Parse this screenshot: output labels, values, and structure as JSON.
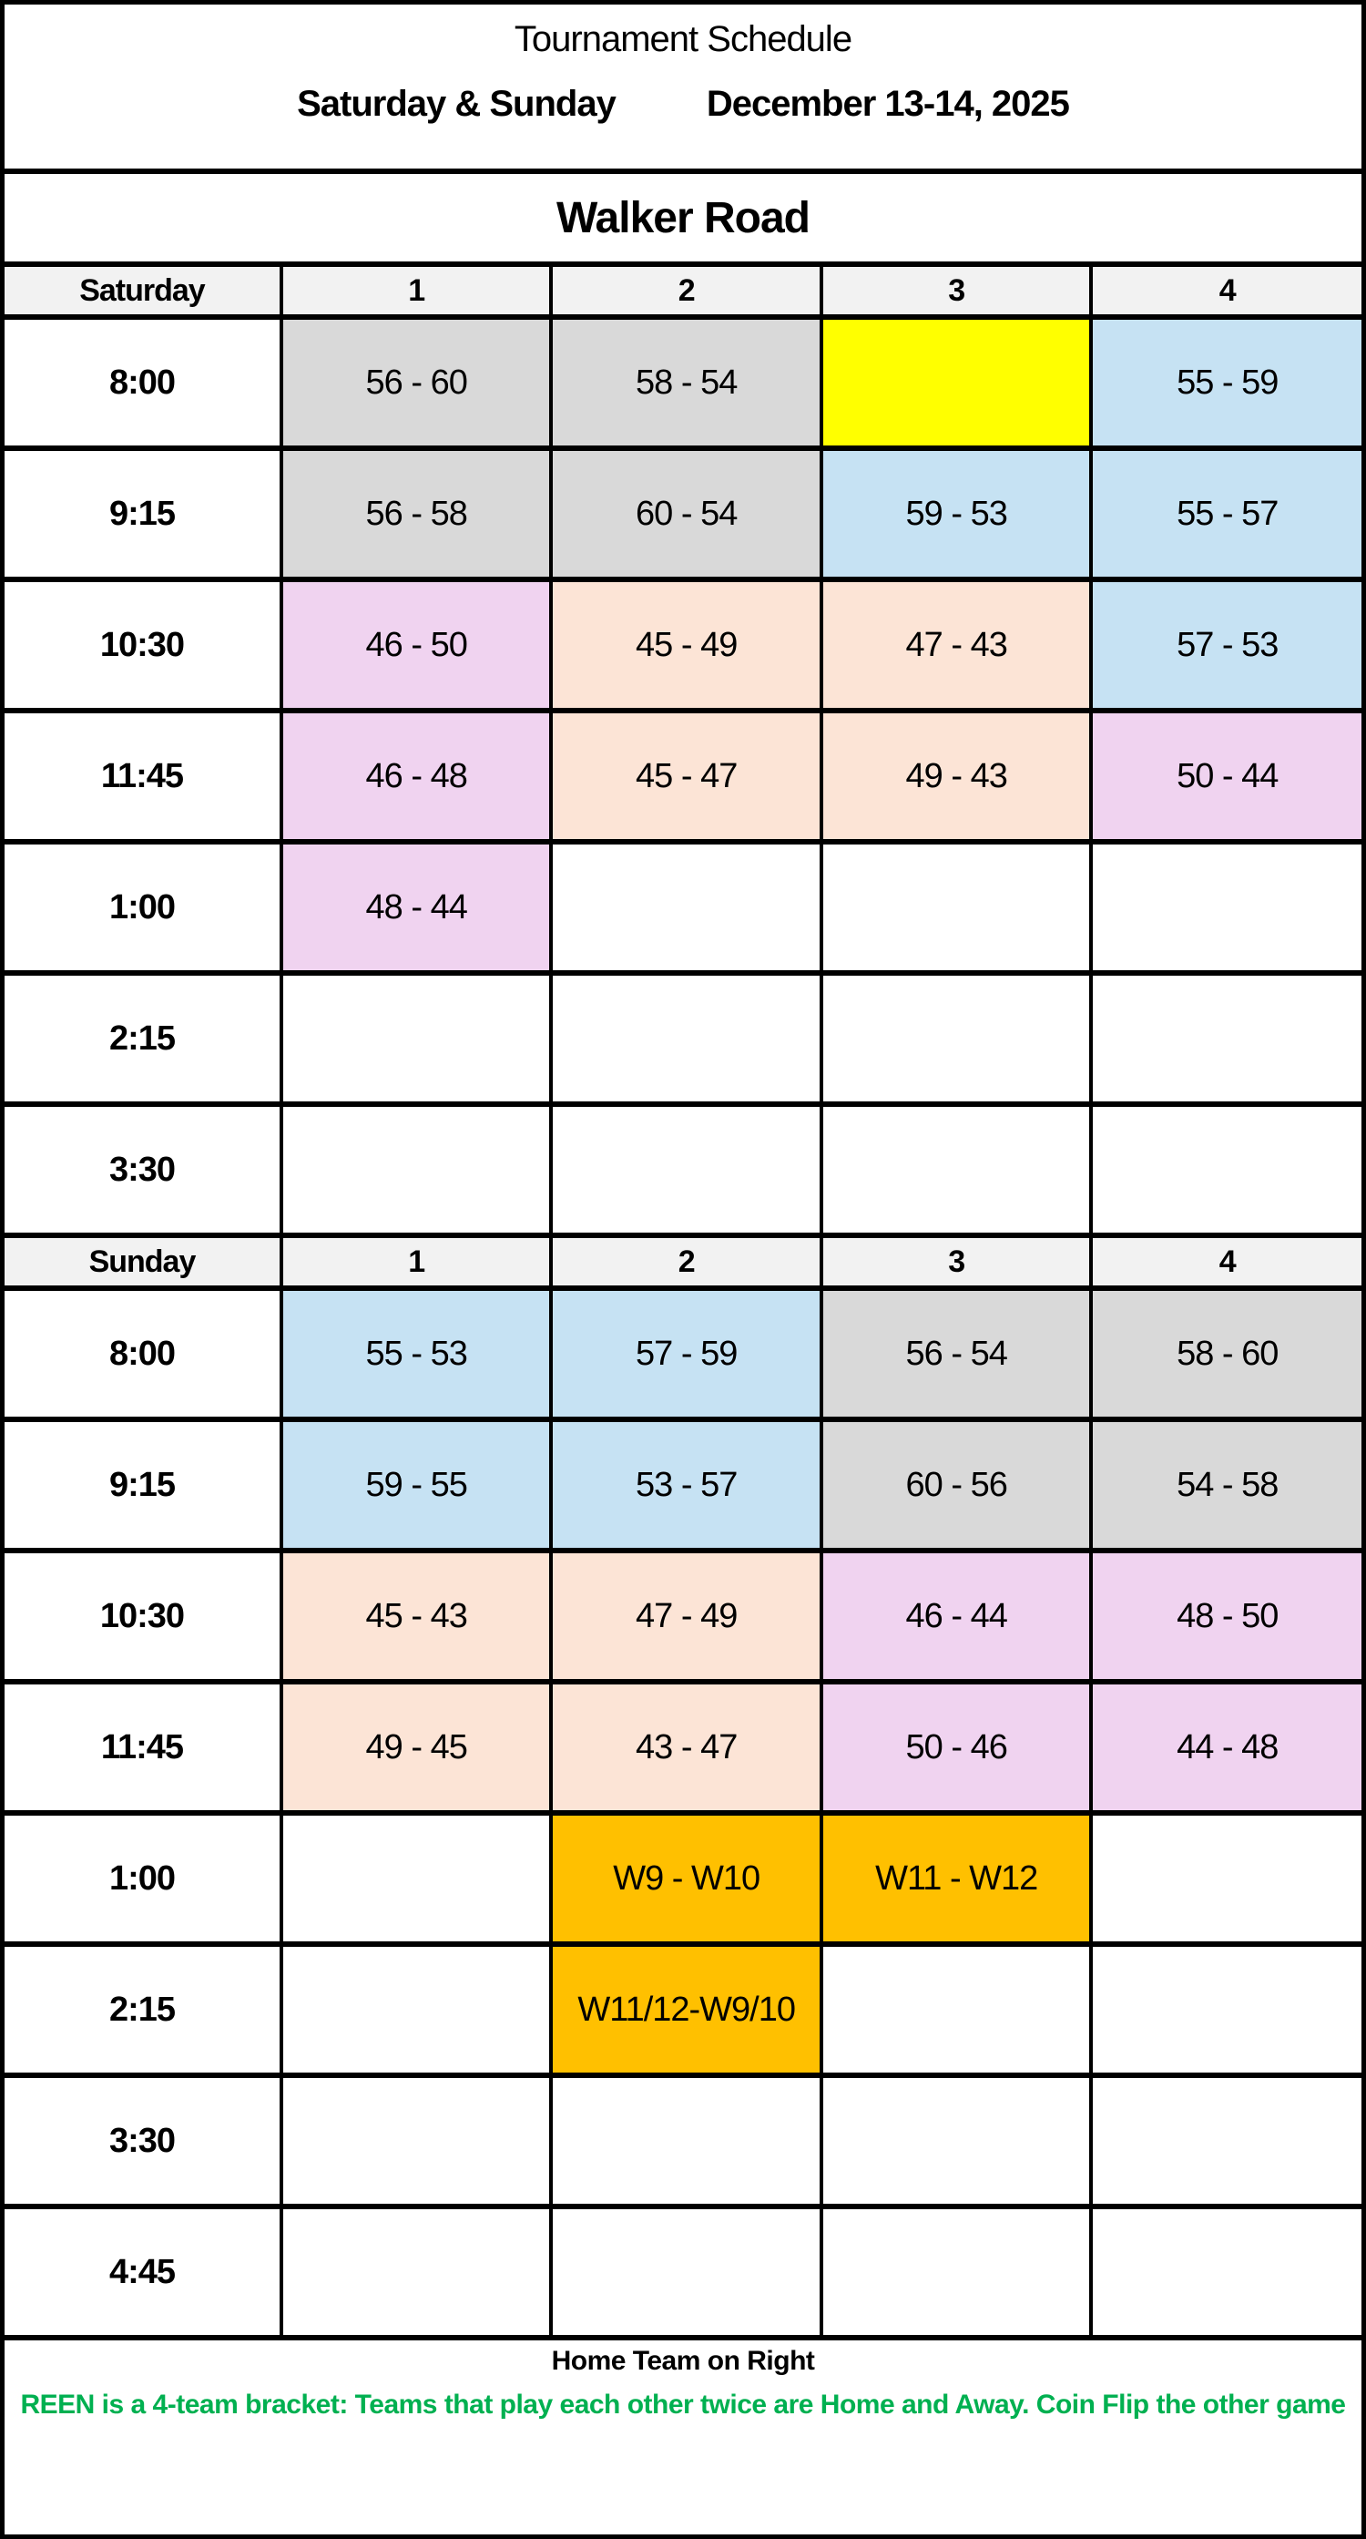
{
  "title": {
    "line1": "Tournament Schedule",
    "days": "Saturday & Sunday",
    "dates": "December 13-14, 2025"
  },
  "venue": "Walker Road",
  "palette": {
    "white": "#FFFFFF",
    "gray": "#D9D9D9",
    "yellow": "#FFFF00",
    "blue": "#C6E2F3",
    "pink": "#F0D3F0",
    "peach": "#FCE4D6",
    "orange": "#FFC000",
    "header_bg": "#F2F2F2",
    "green_note": "#00B050"
  },
  "sections": [
    {
      "day": "Saturday",
      "courts": [
        "1",
        "2",
        "3",
        "4"
      ],
      "rows": [
        {
          "time": "8:00",
          "cells": [
            {
              "text": "56 - 60",
              "bg": "gray"
            },
            {
              "text": "58 - 54",
              "bg": "gray"
            },
            {
              "text": "",
              "bg": "yellow"
            },
            {
              "text": "55 - 59",
              "bg": "blue"
            }
          ]
        },
        {
          "time": "9:15",
          "cells": [
            {
              "text": "56 - 58",
              "bg": "gray"
            },
            {
              "text": "60 - 54",
              "bg": "gray"
            },
            {
              "text": "59 - 53",
              "bg": "blue"
            },
            {
              "text": "55 - 57",
              "bg": "blue"
            }
          ]
        },
        {
          "time": "10:30",
          "cells": [
            {
              "text": "46 - 50",
              "bg": "pink"
            },
            {
              "text": "45 - 49",
              "bg": "peach"
            },
            {
              "text": "47 - 43",
              "bg": "peach"
            },
            {
              "text": "57 - 53",
              "bg": "blue"
            }
          ]
        },
        {
          "time": "11:45",
          "cells": [
            {
              "text": "46 - 48",
              "bg": "pink"
            },
            {
              "text": "45 - 47",
              "bg": "peach"
            },
            {
              "text": "49 - 43",
              "bg": "peach"
            },
            {
              "text": "50 - 44",
              "bg": "pink"
            }
          ]
        },
        {
          "time": "1:00",
          "cells": [
            {
              "text": "48 - 44",
              "bg": "pink"
            },
            {
              "text": "",
              "bg": "white"
            },
            {
              "text": "",
              "bg": "white"
            },
            {
              "text": "",
              "bg": "white"
            }
          ]
        },
        {
          "time": "2:15",
          "cells": [
            {
              "text": "",
              "bg": "white"
            },
            {
              "text": "",
              "bg": "white"
            },
            {
              "text": "",
              "bg": "white"
            },
            {
              "text": "",
              "bg": "white"
            }
          ]
        },
        {
          "time": "3:30",
          "cells": [
            {
              "text": "",
              "bg": "white"
            },
            {
              "text": "",
              "bg": "white"
            },
            {
              "text": "",
              "bg": "white"
            },
            {
              "text": "",
              "bg": "white"
            }
          ]
        }
      ]
    },
    {
      "day": "Sunday",
      "courts": [
        "1",
        "2",
        "3",
        "4"
      ],
      "rows": [
        {
          "time": "8:00",
          "cells": [
            {
              "text": "55 - 53",
              "bg": "blue"
            },
            {
              "text": "57 - 59",
              "bg": "blue"
            },
            {
              "text": "56 - 54",
              "bg": "gray"
            },
            {
              "text": "58 - 60",
              "bg": "gray"
            }
          ]
        },
        {
          "time": "9:15",
          "cells": [
            {
              "text": "59 - 55",
              "bg": "blue"
            },
            {
              "text": "53 - 57",
              "bg": "blue"
            },
            {
              "text": "60 - 56",
              "bg": "gray"
            },
            {
              "text": "54 - 58",
              "bg": "gray"
            }
          ]
        },
        {
          "time": "10:30",
          "cells": [
            {
              "text": "45 - 43",
              "bg": "peach"
            },
            {
              "text": "47 - 49",
              "bg": "peach"
            },
            {
              "text": "46 - 44",
              "bg": "pink"
            },
            {
              "text": "48 - 50",
              "bg": "pink"
            }
          ]
        },
        {
          "time": "11:45",
          "cells": [
            {
              "text": "49 - 45",
              "bg": "peach"
            },
            {
              "text": "43 - 47",
              "bg": "peach"
            },
            {
              "text": "50 - 46",
              "bg": "pink"
            },
            {
              "text": "44 - 48",
              "bg": "pink"
            }
          ]
        },
        {
          "time": "1:00",
          "cells": [
            {
              "text": "",
              "bg": "white"
            },
            {
              "text": "W9 - W10",
              "bg": "orange"
            },
            {
              "text": "W11 - W12",
              "bg": "orange"
            },
            {
              "text": "",
              "bg": "white"
            }
          ]
        },
        {
          "time": "2:15",
          "cells": [
            {
              "text": "",
              "bg": "white"
            },
            {
              "text": "W11/12-W9/10",
              "bg": "orange"
            },
            {
              "text": "",
              "bg": "white"
            },
            {
              "text": "",
              "bg": "white"
            }
          ]
        },
        {
          "time": "3:30",
          "cells": [
            {
              "text": "",
              "bg": "white"
            },
            {
              "text": "",
              "bg": "white"
            },
            {
              "text": "",
              "bg": "white"
            },
            {
              "text": "",
              "bg": "white"
            }
          ]
        },
        {
          "time": "4:45",
          "cells": [
            {
              "text": "",
              "bg": "white"
            },
            {
              "text": "",
              "bg": "white"
            },
            {
              "text": "",
              "bg": "white"
            },
            {
              "text": "",
              "bg": "white"
            }
          ]
        }
      ]
    }
  ],
  "footer": {
    "home_note": "Home Team on Right",
    "bracket_note": "REEN is a 4-team bracket:  Teams that play each other twice are Home and Away.  Coin Flip the other game"
  }
}
